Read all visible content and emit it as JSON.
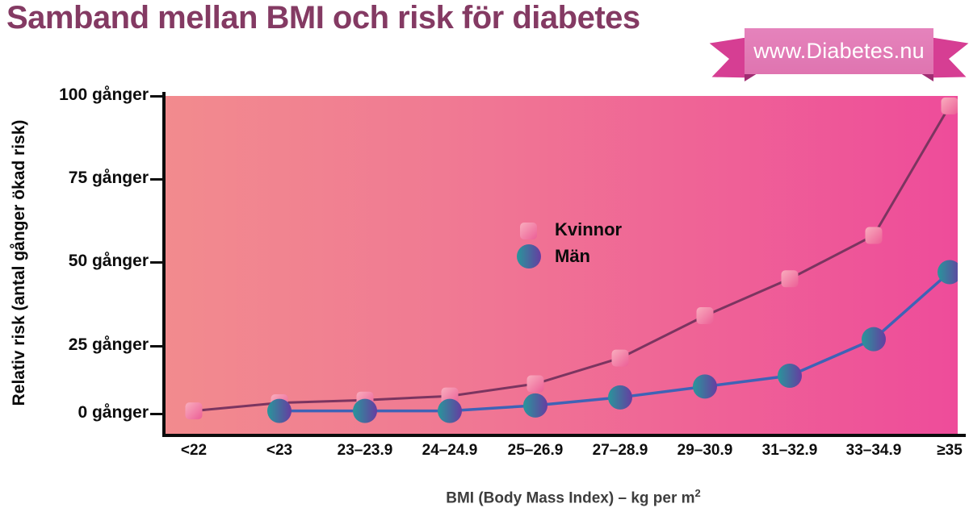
{
  "title": "Samband mellan BMI och risk för diabetes",
  "ribbon": {
    "text": "www.Diabetes.nu",
    "band_color": "#df74b0",
    "tail_color": "#d63e93",
    "fold_color": "#a02c72"
  },
  "axis": {
    "x_title_base": "BMI (Body Mass Index) – kg per m",
    "x_title_sup": "2",
    "y_title": "Relativ risk (antal gånger ökad risk)"
  },
  "chart_data": {
    "type": "line",
    "categories": [
      "<22",
      "<23",
      "23–23.9",
      "24–24.9",
      "25–26.9",
      "27–28.9",
      "29–30.9",
      "31–32.9",
      "33–34.9",
      "≥35"
    ],
    "series": [
      {
        "name": "Kvinnor",
        "marker": "square",
        "line_color": "#7b3560",
        "marker_gradient": [
          "#f9aebe",
          "#ec5e96"
        ],
        "values": [
          1,
          4,
          5,
          6.5,
          11,
          20.5,
          34,
          45,
          58,
          97
        ]
      },
      {
        "name": "Män",
        "marker": "circle",
        "line_color": "#3e63b6",
        "marker_gradient": [
          "#28969b",
          "#663da1"
        ],
        "values": [
          null,
          1,
          1,
          1,
          3,
          6,
          10,
          14,
          27,
          47
        ]
      }
    ],
    "title": "Samband mellan BMI och risk för diabetes",
    "xlabel": "BMI (Body Mass Index) – kg per m²",
    "ylabel": "Relativ risk (antal gånger ökad risk)",
    "ylim": [
      0,
      100
    ],
    "yticks": [
      {
        "value": 0,
        "label": "0 gånger"
      },
      {
        "value": 25,
        "label": "25 gånger"
      },
      {
        "value": 50,
        "label": "50 gånger"
      },
      {
        "value": 75,
        "label": "75 gånger"
      },
      {
        "value": 100,
        "label": "100 gånger"
      }
    ],
    "grid": false,
    "legend_position": "center",
    "plot_background_gradient": [
      "#f28b8e",
      "#ee4c9a"
    ]
  }
}
